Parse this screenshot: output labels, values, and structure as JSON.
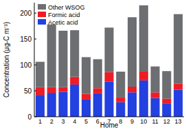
{
  "chart_data": {
    "type": "bar",
    "stacked": true,
    "x_label": "Home",
    "y_label": "Concentration (μg-C m⁻³)",
    "categories": [
      "1",
      "2",
      "3",
      "4",
      "5",
      "6",
      "7",
      "8",
      "9",
      "10",
      "11",
      "12",
      "13"
    ],
    "series": [
      {
        "name": "Acetic acid",
        "color": "#2340e0",
        "values": [
          42,
          46,
          48,
          62,
          33,
          45,
          68,
          28,
          47,
          70,
          36,
          26,
          52
        ]
      },
      {
        "name": "Formic acid",
        "color": "#ee1c25",
        "values": [
          15,
          11,
          9,
          15,
          11,
          10,
          18,
          9,
          11,
          17,
          11,
          9,
          12
        ]
      },
      {
        "name": "Other WSOG",
        "color": "#6d6e71",
        "values": [
          49,
          121,
          109,
          90,
          71,
          56,
          86,
          50,
          134,
          128,
          50,
          53,
          134
        ]
      }
    ],
    "ylim": [
      0,
      220
    ],
    "yticks": [
      0,
      50,
      100,
      150,
      200
    ],
    "legend": "upper left"
  }
}
